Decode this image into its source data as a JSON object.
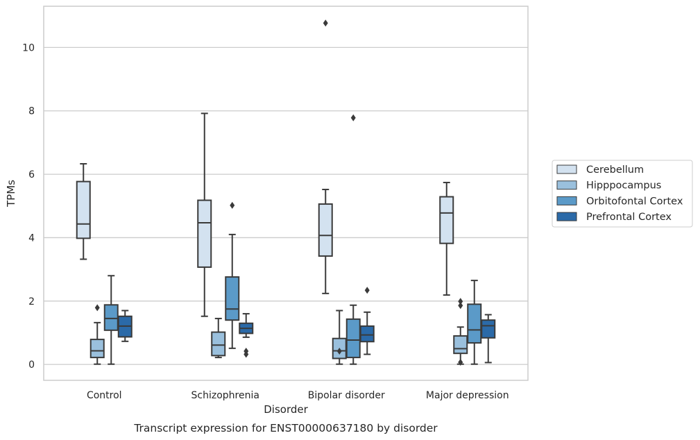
{
  "chart_data": {
    "type": "box",
    "title": "Transcript expression for ENST00000637180 by disorder",
    "xlabel": "Disorder",
    "ylabel": "TPMs",
    "ylim": [
      -0.5,
      11.3
    ],
    "yticks": [
      0,
      2,
      4,
      6,
      8,
      10
    ],
    "grid": true,
    "legend_position": "right",
    "categories": [
      "Control",
      "Schizophrenia",
      "Bipolar disorder",
      "Major depression"
    ],
    "series": [
      {
        "name": "Cerebellum",
        "color": "#d3e2f0",
        "boxes": [
          {
            "whislo": 3.32,
            "q1": 3.98,
            "med": 4.43,
            "q3": 5.77,
            "whishi": 6.33,
            "fliers": []
          },
          {
            "whislo": 1.52,
            "q1": 3.07,
            "med": 4.47,
            "q3": 5.18,
            "whishi": 7.92,
            "fliers": []
          },
          {
            "whislo": 2.24,
            "q1": 3.42,
            "med": 4.07,
            "q3": 5.06,
            "whishi": 5.52,
            "fliers": [
              10.77
            ]
          },
          {
            "whislo": 2.19,
            "q1": 3.82,
            "med": 4.78,
            "q3": 5.29,
            "whishi": 5.74,
            "fliers": []
          }
        ]
      },
      {
        "name": "Hipppocampus",
        "color": "#9ac0dd",
        "boxes": [
          {
            "whislo": 0.01,
            "q1": 0.22,
            "med": 0.43,
            "q3": 0.79,
            "whishi": 1.32,
            "fliers": [
              1.79
            ]
          },
          {
            "whislo": 0.22,
            "q1": 0.28,
            "med": 0.61,
            "q3": 1.02,
            "whishi": 1.45,
            "fliers": []
          },
          {
            "whislo": 0.01,
            "q1": 0.19,
            "med": 0.43,
            "q3": 0.82,
            "whishi": 1.7,
            "fliers": [
              0.42
            ]
          },
          {
            "whislo": 0.01,
            "q1": 0.35,
            "med": 0.5,
            "q3": 0.9,
            "whishi": 1.18,
            "fliers": [
              0.07,
              1.86,
              1.99
            ]
          }
        ]
      },
      {
        "name": "Orbitofontal Cortex",
        "color": "#5b9ac8",
        "boxes": [
          {
            "whislo": 0.01,
            "q1": 1.08,
            "med": 1.45,
            "q3": 1.88,
            "whishi": 2.8,
            "fliers": []
          },
          {
            "whislo": 0.51,
            "q1": 1.4,
            "med": 1.75,
            "q3": 2.76,
            "whishi": 4.1,
            "fliers": [
              5.02
            ]
          },
          {
            "whislo": 0.01,
            "q1": 0.22,
            "med": 0.77,
            "q3": 1.43,
            "whishi": 1.87,
            "fliers": [
              7.78
            ]
          },
          {
            "whislo": 0.01,
            "q1": 0.68,
            "med": 1.09,
            "q3": 1.9,
            "whishi": 2.65,
            "fliers": []
          }
        ]
      },
      {
        "name": "Prefrontal Cortex",
        "color": "#2b6aa8",
        "boxes": [
          {
            "whislo": 0.73,
            "q1": 0.87,
            "med": 1.21,
            "q3": 1.52,
            "whishi": 1.7,
            "fliers": []
          },
          {
            "whislo": 0.86,
            "q1": 0.98,
            "med": 1.14,
            "q3": 1.3,
            "whishi": 1.6,
            "fliers": [
              0.32,
              0.42
            ]
          },
          {
            "whislo": 0.32,
            "q1": 0.72,
            "med": 0.93,
            "q3": 1.21,
            "whishi": 1.65,
            "fliers": [
              2.34
            ]
          },
          {
            "whislo": 0.06,
            "q1": 0.84,
            "med": 1.22,
            "q3": 1.4,
            "whishi": 1.57,
            "fliers": []
          }
        ]
      }
    ]
  }
}
